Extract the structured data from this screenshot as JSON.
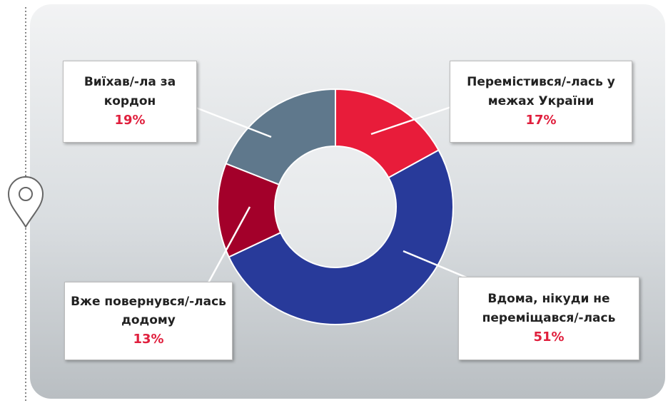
{
  "chart_data": {
    "type": "pie",
    "donut": true,
    "categories": [
      "Перемістився/-лась у межах України",
      "Вдома, нікуди не переміщався/-лась",
      "Вже повернувся/-лась додому",
      "Виїхав/-ла за кордон"
    ],
    "values": [
      17,
      51,
      13,
      19
    ],
    "value_labels": [
      "17%",
      "51%",
      "13%",
      "19%"
    ],
    "colors": [
      "#e81c3a",
      "#283a9a",
      "#a3002a",
      "#5f788c"
    ]
  }
}
